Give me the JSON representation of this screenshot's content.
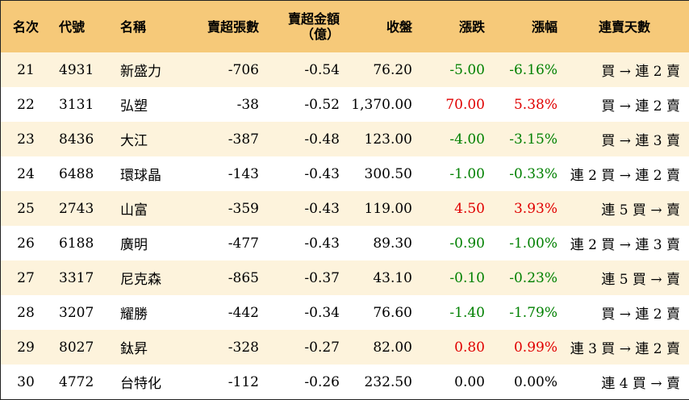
{
  "headers": {
    "rank": "名次",
    "code": "代號",
    "name": "名稱",
    "net_sell_shares": "賣超張數",
    "net_sell_amount_line1": "賣超金額",
    "net_sell_amount_line2": "（億）",
    "close": "收盤",
    "change": "漲跌",
    "change_pct": "漲幅",
    "consecutive_days": "連賣天數"
  },
  "colors": {
    "header_bg": "#f6c979",
    "stripe_bg": "#fdf3dc",
    "up": "#e00000",
    "down": "#008000"
  },
  "rows": [
    {
      "rank": "21",
      "code": "4931",
      "name": "新盛力",
      "shares": "-706",
      "amount": "-0.54",
      "close": "76.20",
      "change": "-5.00",
      "pct": "-6.16%",
      "dir": "neg",
      "days": "買 → 連 2 賣"
    },
    {
      "rank": "22",
      "code": "3131",
      "name": "弘塑",
      "shares": "-38",
      "amount": "-0.52",
      "close": "1,370.00",
      "change": "70.00",
      "pct": "5.38%",
      "dir": "pos",
      "days": "買 → 連 2 賣"
    },
    {
      "rank": "23",
      "code": "8436",
      "name": "大江",
      "shares": "-387",
      "amount": "-0.48",
      "close": "123.00",
      "change": "-4.00",
      "pct": "-3.15%",
      "dir": "neg",
      "days": "買 → 連 3 賣"
    },
    {
      "rank": "24",
      "code": "6488",
      "name": "環球晶",
      "shares": "-143",
      "amount": "-0.43",
      "close": "300.50",
      "change": "-1.00",
      "pct": "-0.33%",
      "dir": "neg",
      "days": "連 2 買 → 連 2 賣"
    },
    {
      "rank": "25",
      "code": "2743",
      "name": "山富",
      "shares": "-359",
      "amount": "-0.43",
      "close": "119.00",
      "change": "4.50",
      "pct": "3.93%",
      "dir": "pos",
      "days": "連 5 買 → 賣"
    },
    {
      "rank": "26",
      "code": "6188",
      "name": "廣明",
      "shares": "-477",
      "amount": "-0.43",
      "close": "89.30",
      "change": "-0.90",
      "pct": "-1.00%",
      "dir": "neg",
      "days": "連 2 買 → 連 3 賣"
    },
    {
      "rank": "27",
      "code": "3317",
      "name": "尼克森",
      "shares": "-865",
      "amount": "-0.37",
      "close": "43.10",
      "change": "-0.10",
      "pct": "-0.23%",
      "dir": "neg",
      "days": "連 5 買 → 賣"
    },
    {
      "rank": "28",
      "code": "3207",
      "name": "耀勝",
      "shares": "-442",
      "amount": "-0.34",
      "close": "76.60",
      "change": "-1.40",
      "pct": "-1.79%",
      "dir": "neg",
      "days": "買 → 連 2 賣"
    },
    {
      "rank": "29",
      "code": "8027",
      "name": "鈦昇",
      "shares": "-328",
      "amount": "-0.27",
      "close": "82.00",
      "change": "0.80",
      "pct": "0.99%",
      "dir": "pos",
      "days": "連 3 買 → 連 2 賣"
    },
    {
      "rank": "30",
      "code": "4772",
      "name": "台特化",
      "shares": "-112",
      "amount": "-0.26",
      "close": "232.50",
      "change": "0.00",
      "pct": "0.00%",
      "dir": "flat",
      "days": "連 4 買 → 賣"
    }
  ]
}
